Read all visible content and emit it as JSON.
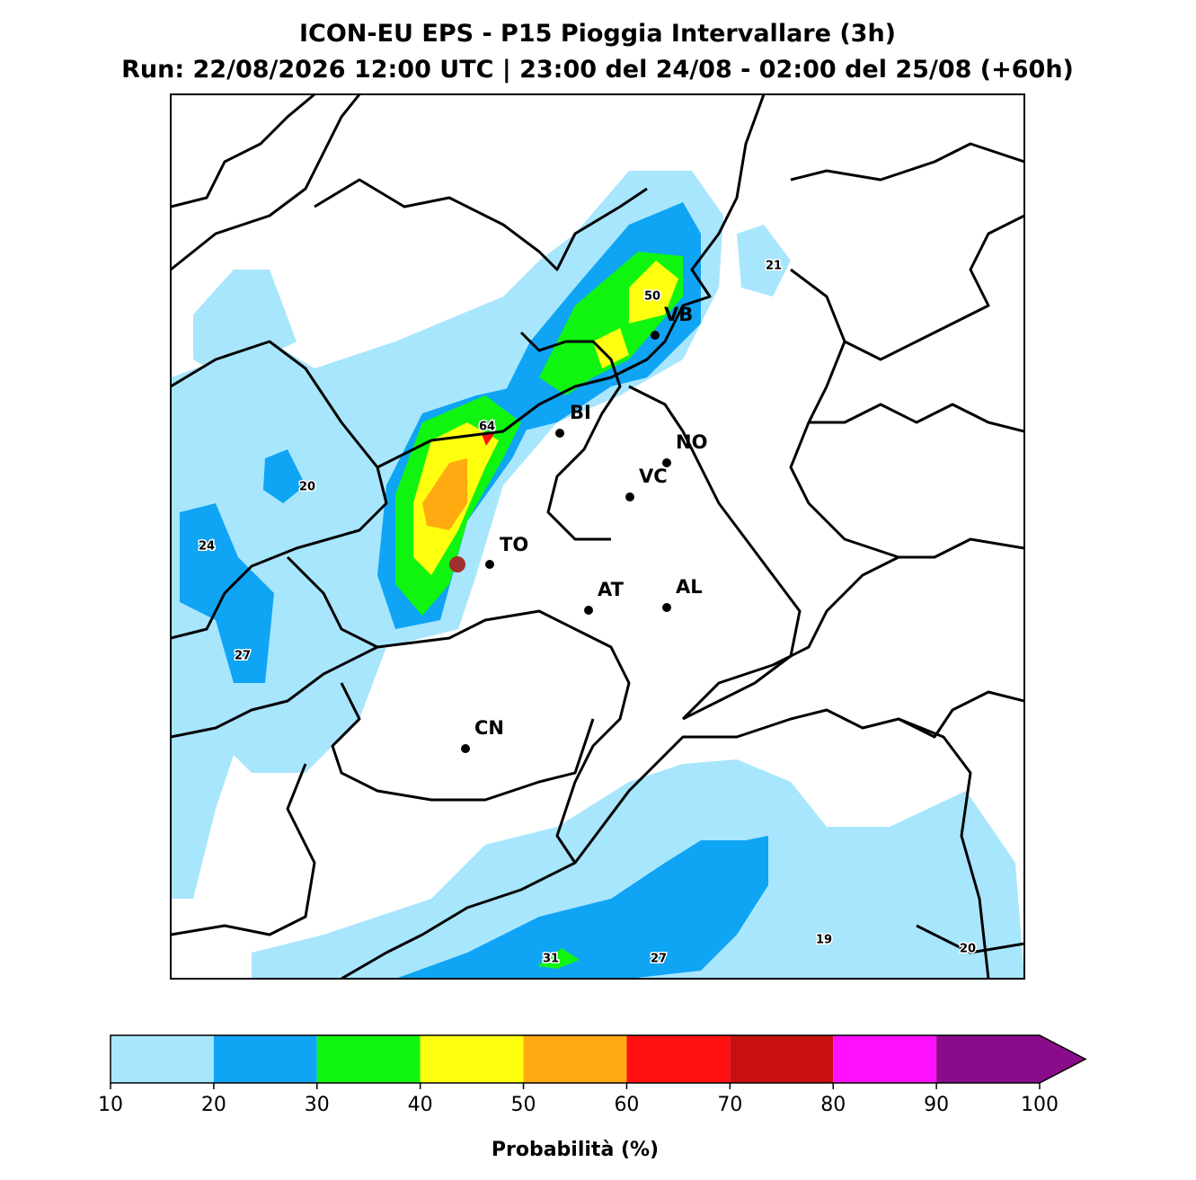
{
  "title": "ICON-EU EPS - P15 Pioggia Intervallare (3h)",
  "subtitle": "Run: 22/08/2026 12:00 UTC | 23:00 del 24/08 - 02:00 del 25/08 (+60h)",
  "cities": [
    "VB",
    "BI",
    "NO",
    "VC",
    "TO",
    "AT",
    "AL",
    "CN"
  ],
  "contour_labels": [
    21,
    50,
    64,
    20,
    24,
    27,
    31,
    27,
    19,
    20
  ],
  "colorbar": {
    "label": "Probabilità (%)",
    "ticks": [
      10,
      20,
      30,
      40,
      50,
      60,
      70,
      80,
      90,
      100
    ],
    "colors": [
      "#a8e6fd",
      "#10a4f5",
      "#10f510",
      "#ffff10",
      "#ffaa10",
      "#ff1010",
      "#c81010",
      "#ff10ff",
      "#8a0c8a"
    ]
  }
}
